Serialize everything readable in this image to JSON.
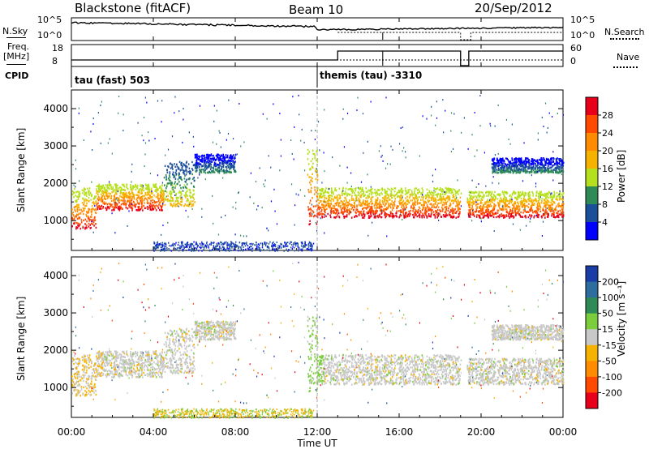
{
  "header": {
    "radar": "Blackstone (fitACF)",
    "beam": "Beam 10",
    "date": "20/Sep/2012"
  },
  "noise_panel": {
    "left_label": "N.Sky",
    "left_ticks": [
      "10^5",
      "10^0"
    ],
    "right_label": "N.Search",
    "right_ticks": [
      "10^5",
      "10^0"
    ]
  },
  "freq_panel": {
    "left_label_line1": "Freq.",
    "left_label_line2": "[MHz]",
    "left_ticks": [
      "18",
      "8"
    ],
    "right_label": "Nave",
    "right_ticks": [
      "60",
      "0"
    ]
  },
  "cpid_panel": {
    "label": "CPID",
    "programs": [
      {
        "name": "tau (fast) 503",
        "start_hour": 0
      },
      {
        "name": "themis (tau) -3310",
        "start_hour": 12
      }
    ]
  },
  "x_axis": {
    "label": "Time UT",
    "ticks": [
      "00:00",
      "04:00",
      "08:00",
      "12:00",
      "16:00",
      "20:00",
      "00:00"
    ],
    "tick_hours": [
      0,
      4,
      8,
      12,
      16,
      20,
      24
    ]
  },
  "panels": {
    "power": {
      "ylabel": "Slant Range [km]",
      "yticks": [
        "4000",
        "3000",
        "2000",
        "1000"
      ],
      "colorbar_label": "Power [dB]",
      "colorbar_ticks": [
        "28",
        "24",
        "20",
        "16",
        "12",
        "8",
        "4"
      ],
      "colors": [
        "#e8001a",
        "#ff4a00",
        "#ff8c00",
        "#f5b300",
        "#b5e01e",
        "#2e8b57",
        "#1b4f9a",
        "#0000ff"
      ]
    },
    "velocity": {
      "ylabel": "Slant Range [km]",
      "yticks": [
        "4000",
        "3000",
        "2000",
        "1000"
      ],
      "colorbar_label": "Velocity [m s⁻¹]",
      "colorbar_ticks": [
        "200",
        "100",
        "50",
        "15",
        "-15",
        "-50",
        "-100",
        "-200"
      ],
      "colors": [
        "#1a3ca6",
        "#2e6e9e",
        "#2e8b57",
        "#7ccd3c",
        "#c8c8c8",
        "#f5b300",
        "#ff8c00",
        "#ff4a00",
        "#e8001a"
      ]
    }
  },
  "chart_data": {
    "type": "heatmap",
    "x_unit": "hour UT",
    "xlim": [
      0,
      24
    ],
    "ylim_km": [
      200,
      4500
    ],
    "power_bands": [
      {
        "t0": 0.0,
        "t1": 1.2,
        "r0": 800,
        "r1": 1900,
        "level": "high"
      },
      {
        "t0": 1.2,
        "t1": 4.5,
        "r0": 1300,
        "r1": 2000,
        "level": "high"
      },
      {
        "t0": 4.5,
        "t1": 6.0,
        "r0": 1400,
        "r1": 2600,
        "level": "medium"
      },
      {
        "t0": 6.0,
        "t1": 8.0,
        "r0": 2300,
        "r1": 2800,
        "level": "low"
      },
      {
        "t0": 11.5,
        "t1": 12.0,
        "r0": 900,
        "r1": 3000,
        "level": "high"
      },
      {
        "t0": 12.0,
        "t1": 19.0,
        "r0": 1100,
        "r1": 1900,
        "level": "high"
      },
      {
        "t0": 19.3,
        "t1": 24.0,
        "r0": 1100,
        "r1": 1800,
        "level": "high"
      },
      {
        "t0": 20.5,
        "t1": 24.0,
        "r0": 2300,
        "r1": 2700,
        "level": "low"
      }
    ],
    "ground_scatter": {
      "t0": 4.0,
      "t1": 11.8,
      "r0": 200,
      "r1": 450
    }
  }
}
